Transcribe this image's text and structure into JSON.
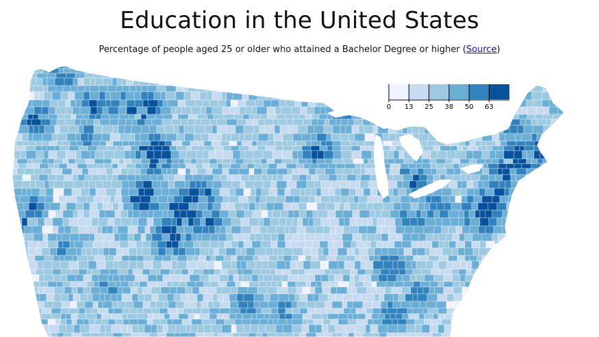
{
  "page": {
    "title": "Education in the United States",
    "subtitle_prefix": "Percentage of people aged 25 or older who attained a Bachelor Degree or higher (",
    "source_link": "Source",
    "subtitle_suffix": ")"
  },
  "legend": {
    "ticks": [
      "0",
      "13",
      "25",
      "38",
      "50",
      "63"
    ],
    "colors": [
      "#eff3ff",
      "#c6dbef",
      "#9ecae1",
      "#6baed6",
      "#3182bd",
      "#08519c"
    ]
  },
  "map": {
    "base_color": "#9ecae1",
    "border_color": "#ffffff"
  }
}
